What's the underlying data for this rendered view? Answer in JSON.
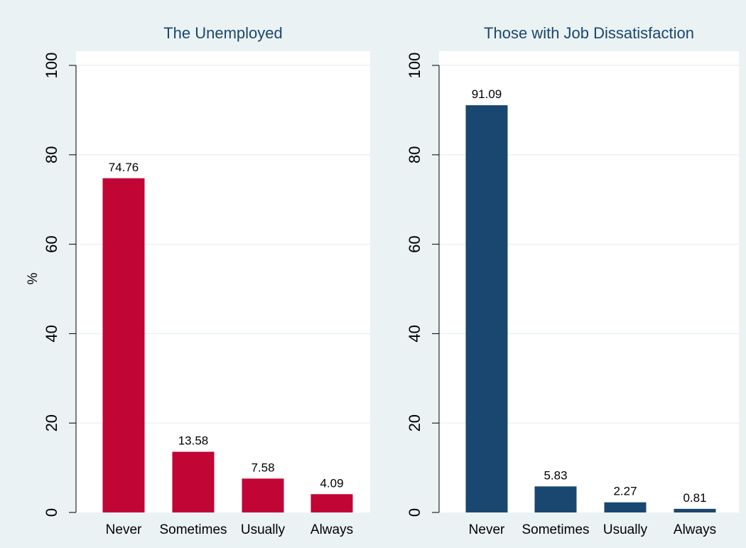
{
  "chart_data": [
    {
      "type": "bar",
      "title": "The Unemployed",
      "ylabel": "%",
      "categories": [
        "Never",
        "Sometimes",
        "Usually",
        "Always"
      ],
      "values": [
        74.76,
        13.58,
        7.58,
        4.09
      ],
      "value_labels": [
        "74.76",
        "13.58",
        "7.58",
        "4.09"
      ],
      "ylim": [
        0,
        100
      ],
      "yticks": [
        0,
        20,
        40,
        60,
        80,
        100
      ],
      "ytick_labels": [
        "0",
        "20",
        "40",
        "60",
        "80",
        "100"
      ],
      "bar_color": "#c10534",
      "grid": true
    },
    {
      "type": "bar",
      "title": "Those with Job Dissatisfaction",
      "ylabel": "",
      "categories": [
        "Never",
        "Sometimes",
        "Usually",
        "Always"
      ],
      "values": [
        91.09,
        5.83,
        2.27,
        0.81
      ],
      "value_labels": [
        "91.09",
        "5.83",
        "2.27",
        "0.81"
      ],
      "ylim": [
        0,
        100
      ],
      "yticks": [
        0,
        20,
        40,
        60,
        80,
        100
      ],
      "ytick_labels": [
        "0",
        "20",
        "40",
        "60",
        "80",
        "100"
      ],
      "bar_color": "#1a476f",
      "grid": true
    }
  ],
  "colors": {
    "panel_background": "#eaf2f3",
    "plot_background": "#ffffff",
    "title_color": "#1a476f"
  }
}
